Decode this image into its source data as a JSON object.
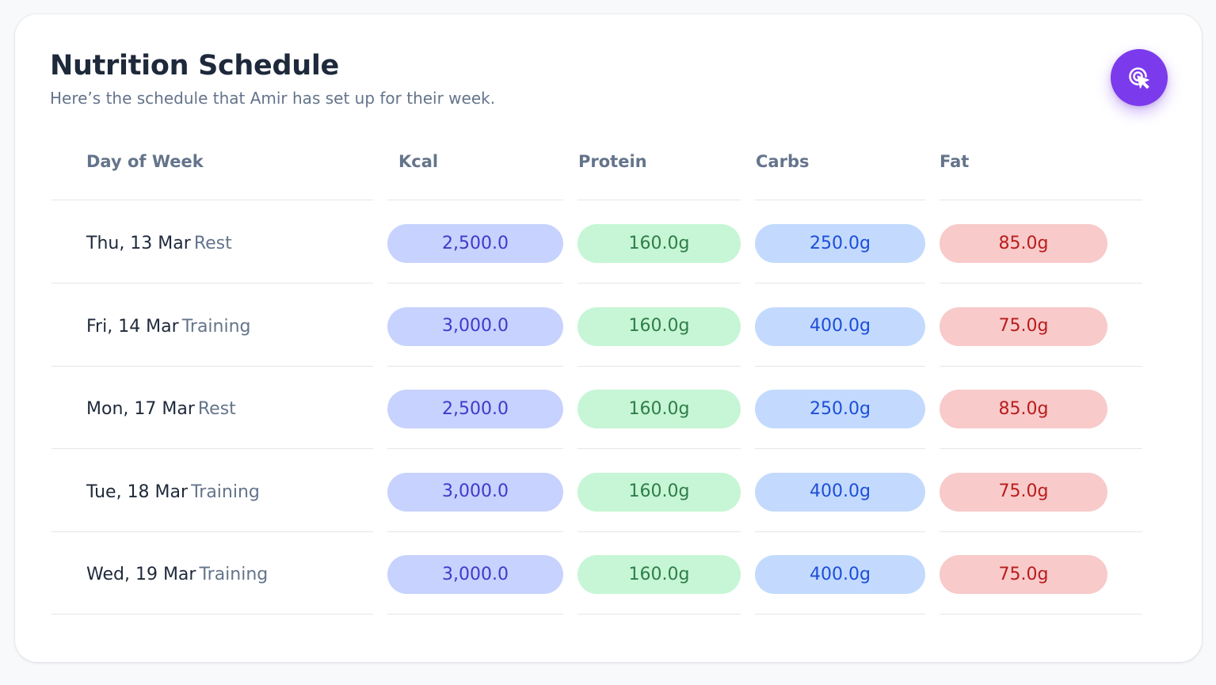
{
  "header": {
    "title": "Nutrition Schedule",
    "subtitle": "Here’s the schedule that Amir has set up for their week."
  },
  "fab": {
    "icon": "cursor-click-icon"
  },
  "table": {
    "columns": [
      "Day of Week",
      "Kcal",
      "Protein",
      "Carbs",
      "Fat"
    ],
    "rows": [
      {
        "day": "Thu, 13 Mar",
        "type": "Rest",
        "kcal": "2,500.0",
        "protein": "160.0g",
        "carbs": "250.0g",
        "fat": "85.0g"
      },
      {
        "day": "Fri, 14 Mar",
        "type": "Training",
        "kcal": "3,000.0",
        "protein": "160.0g",
        "carbs": "400.0g",
        "fat": "75.0g"
      },
      {
        "day": "Mon, 17 Mar",
        "type": "Rest",
        "kcal": "2,500.0",
        "protein": "160.0g",
        "carbs": "250.0g",
        "fat": "85.0g"
      },
      {
        "day": "Tue, 18 Mar",
        "type": "Training",
        "kcal": "3,000.0",
        "protein": "160.0g",
        "carbs": "400.0g",
        "fat": "75.0g"
      },
      {
        "day": "Wed, 19 Mar",
        "type": "Training",
        "kcal": "3,000.0",
        "protein": "160.0g",
        "carbs": "400.0g",
        "fat": "75.0g"
      }
    ]
  },
  "colors": {
    "accent": "#7c3aed",
    "kcal_bg": "#c7d2fe",
    "protein_bg": "#c6f6d5",
    "carbs_bg": "#c3dafe",
    "fat_bg": "#f8caca"
  }
}
